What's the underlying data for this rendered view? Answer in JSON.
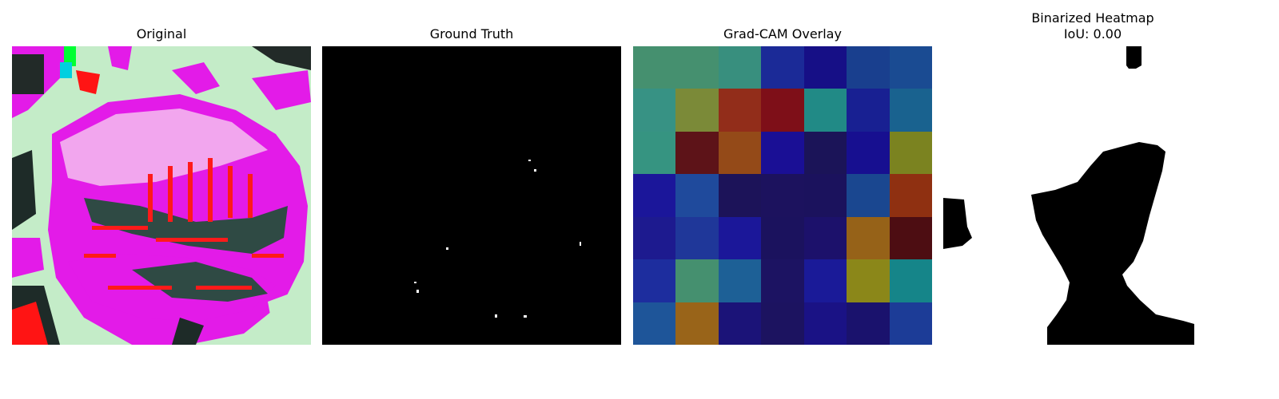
{
  "panels": {
    "original": {
      "title": "Original"
    },
    "ground_truth": {
      "title": "Ground Truth"
    },
    "gradcam": {
      "title": "Grad-CAM Overlay",
      "grid_colors": [
        [
          "#45906f",
          "#45906f",
          "#388f7e",
          "#1b2a97",
          "#160f86",
          "#193f8e",
          "#1a4b92"
        ],
        [
          "#379284",
          "#7b8a38",
          "#922d1a",
          "#7e0f18",
          "#218a86",
          "#182092",
          "#19628f"
        ],
        [
          "#369481",
          "#5d1318",
          "#944a18",
          "#1a0f95",
          "#1b1458",
          "#170f90",
          "#7b8320"
        ],
        [
          "#1b169a",
          "#1f4a9c",
          "#1c1359",
          "#1c125e",
          "#1b125d",
          "#1a4790",
          "#8f3011"
        ],
        [
          "#1d1a8f",
          "#1f3799",
          "#1b1799",
          "#1b125e",
          "#1c116b",
          "#966218",
          "#4d0d12"
        ],
        [
          "#1d2d9e",
          "#45906f",
          "#1d6096",
          "#1c1362",
          "#1a1a98",
          "#8b8719",
          "#158589"
        ],
        [
          "#1e5599",
          "#996419",
          "#1b1378",
          "#1c1360",
          "#1a1285",
          "#1a126d",
          "#1c3c97"
        ]
      ]
    },
    "binarized": {
      "title": "Binarized Heatmap\nIoU: 0.00"
    }
  }
}
